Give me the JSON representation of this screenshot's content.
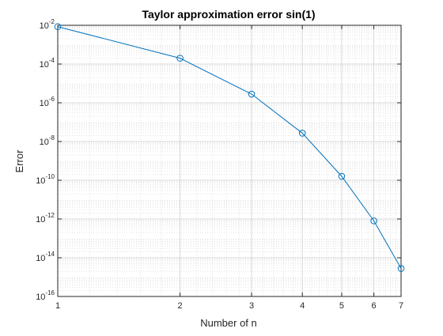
{
  "chart_data": {
    "type": "line",
    "title": "Taylor approximation error sin(1)",
    "xlabel": "Number of n",
    "ylabel": "Error",
    "xscale": "log",
    "yscale": "log",
    "xlim": [
      1,
      7
    ],
    "ylim": [
      1e-16,
      0.01
    ],
    "grid": true,
    "minor_grid": true,
    "x_ticks": [
      1,
      2,
      3,
      4,
      5,
      6,
      7
    ],
    "x_tick_labels": [
      "1",
      "2",
      "3",
      "4",
      "5",
      "6",
      "7"
    ],
    "y_ticks": [
      1e-16,
      1e-14,
      1e-12,
      1e-10,
      1e-08,
      1e-06,
      0.0001,
      0.01
    ],
    "y_tick_labels": [
      {
        "base": "10",
        "exp": "-16"
      },
      {
        "base": "10",
        "exp": "-14"
      },
      {
        "base": "10",
        "exp": "-12"
      },
      {
        "base": "10",
        "exp": "-10"
      },
      {
        "base": "10",
        "exp": "-8"
      },
      {
        "base": "10",
        "exp": "-6"
      },
      {
        "base": "10",
        "exp": "-4"
      },
      {
        "base": "10",
        "exp": "-2"
      }
    ],
    "series": [
      {
        "marker": "circle",
        "color": "#0072BD",
        "x": [
          1,
          2,
          3,
          4,
          5,
          6,
          7
        ],
        "y": [
          0.0085,
          0.0002,
          2.8e-06,
          2.7e-08,
          1.6e-10,
          8e-13,
          2.8e-15
        ]
      }
    ]
  }
}
